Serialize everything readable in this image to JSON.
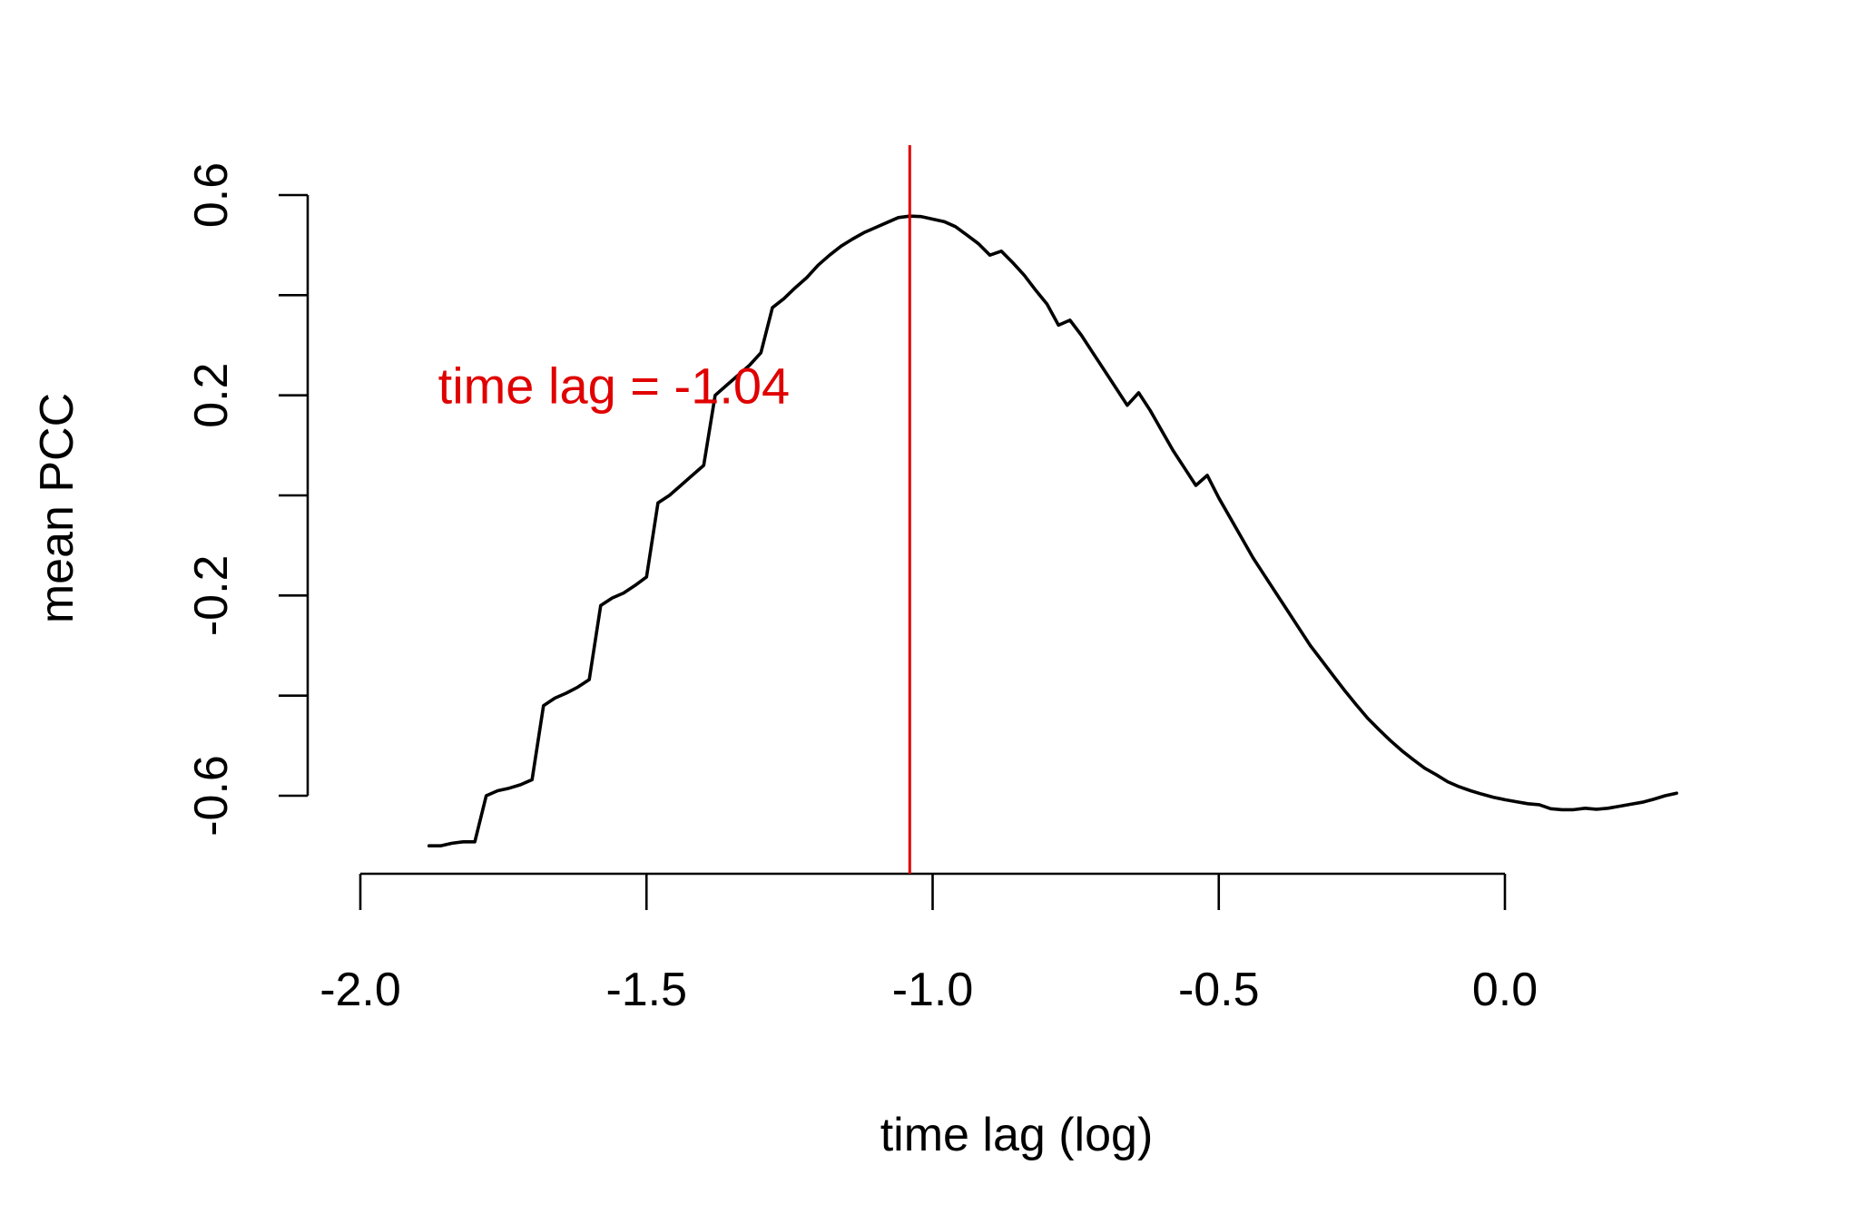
{
  "chart_data": {
    "type": "line",
    "xlabel": "time lag (log)",
    "ylabel": "mean PCC",
    "xlim": [
      -2.0,
      0.3
    ],
    "ylim": [
      -0.6,
      0.6
    ],
    "x_ticks": [
      -2.0,
      -1.5,
      -1.0,
      -0.5,
      0.0
    ],
    "x_tick_labels": [
      "-2.0",
      "-1.5",
      "-1.0",
      "-0.5",
      "0.0"
    ],
    "y_ticks": [
      -0.6,
      -0.4,
      -0.2,
      0.0,
      0.2,
      0.4,
      0.6
    ],
    "y_tick_labels": [
      "-0.6",
      "",
      "-0.2",
      "",
      "0.2",
      "",
      "0.6"
    ],
    "grid": false,
    "legend": "none",
    "series": [
      {
        "color": "#000000",
        "x": [
          -1.88,
          -1.86,
          -1.84,
          -1.82,
          -1.8,
          -1.78,
          -1.76,
          -1.74,
          -1.72,
          -1.7,
          -1.68,
          -1.66,
          -1.64,
          -1.62,
          -1.6,
          -1.58,
          -1.56,
          -1.54,
          -1.52,
          -1.5,
          -1.48,
          -1.46,
          -1.44,
          -1.42,
          -1.4,
          -1.38,
          -1.36,
          -1.34,
          -1.32,
          -1.3,
          -1.28,
          -1.26,
          -1.24,
          -1.22,
          -1.2,
          -1.18,
          -1.16,
          -1.14,
          -1.12,
          -1.1,
          -1.08,
          -1.06,
          -1.04,
          -1.02,
          -1.0,
          -0.98,
          -0.96,
          -0.94,
          -0.92,
          -0.9,
          -0.88,
          -0.86,
          -0.84,
          -0.82,
          -0.8,
          -0.78,
          -0.76,
          -0.74,
          -0.72,
          -0.7,
          -0.68,
          -0.66,
          -0.64,
          -0.62,
          -0.6,
          -0.58,
          -0.56,
          -0.54,
          -0.52,
          -0.5,
          -0.48,
          -0.46,
          -0.44,
          -0.42,
          -0.4,
          -0.38,
          -0.36,
          -0.34,
          -0.32,
          -0.3,
          -0.28,
          -0.26,
          -0.24,
          -0.22,
          -0.2,
          -0.18,
          -0.16,
          -0.14,
          -0.12,
          -0.1,
          -0.08,
          -0.06,
          -0.04,
          -0.02,
          0.0,
          0.02,
          0.04,
          0.06,
          0.08,
          0.1,
          0.12,
          0.14,
          0.16,
          0.18,
          0.2,
          0.22,
          0.24,
          0.26,
          0.28,
          0.3
        ],
        "y": [
          -0.7,
          -0.7,
          -0.695,
          -0.692,
          -0.692,
          -0.6,
          -0.59,
          -0.585,
          -0.578,
          -0.568,
          -0.42,
          -0.405,
          -0.395,
          -0.383,
          -0.368,
          -0.22,
          -0.205,
          -0.195,
          -0.18,
          -0.163,
          -0.015,
          0.0,
          0.02,
          0.04,
          0.06,
          0.2,
          0.22,
          0.24,
          0.26,
          0.285,
          0.375,
          0.393,
          0.415,
          0.435,
          0.46,
          0.48,
          0.498,
          0.512,
          0.525,
          0.535,
          0.545,
          0.555,
          0.558,
          0.557,
          0.552,
          0.547,
          0.537,
          0.52,
          0.503,
          0.48,
          0.488,
          0.465,
          0.44,
          0.41,
          0.382,
          0.34,
          0.35,
          0.32,
          0.285,
          0.25,
          0.215,
          0.18,
          0.205,
          0.17,
          0.13,
          0.09,
          0.055,
          0.02,
          0.04,
          -0.005,
          -0.045,
          -0.085,
          -0.125,
          -0.16,
          -0.195,
          -0.23,
          -0.265,
          -0.3,
          -0.33,
          -0.36,
          -0.39,
          -0.418,
          -0.445,
          -0.468,
          -0.49,
          -0.51,
          -0.528,
          -0.545,
          -0.558,
          -0.572,
          -0.582,
          -0.59,
          -0.597,
          -0.603,
          -0.608,
          -0.612,
          -0.616,
          -0.618,
          -0.626,
          -0.628,
          -0.628,
          -0.625,
          -0.627,
          -0.625,
          -0.621,
          -0.617,
          -0.613,
          -0.607,
          -0.6,
          -0.595
        ]
      }
    ],
    "vline": {
      "x": -1.04,
      "color": "#e00000"
    },
    "annotations": [
      {
        "text": "time lag = -1.04",
        "x": -1.88,
        "y": 0.22,
        "color": "#e00000"
      }
    ]
  }
}
